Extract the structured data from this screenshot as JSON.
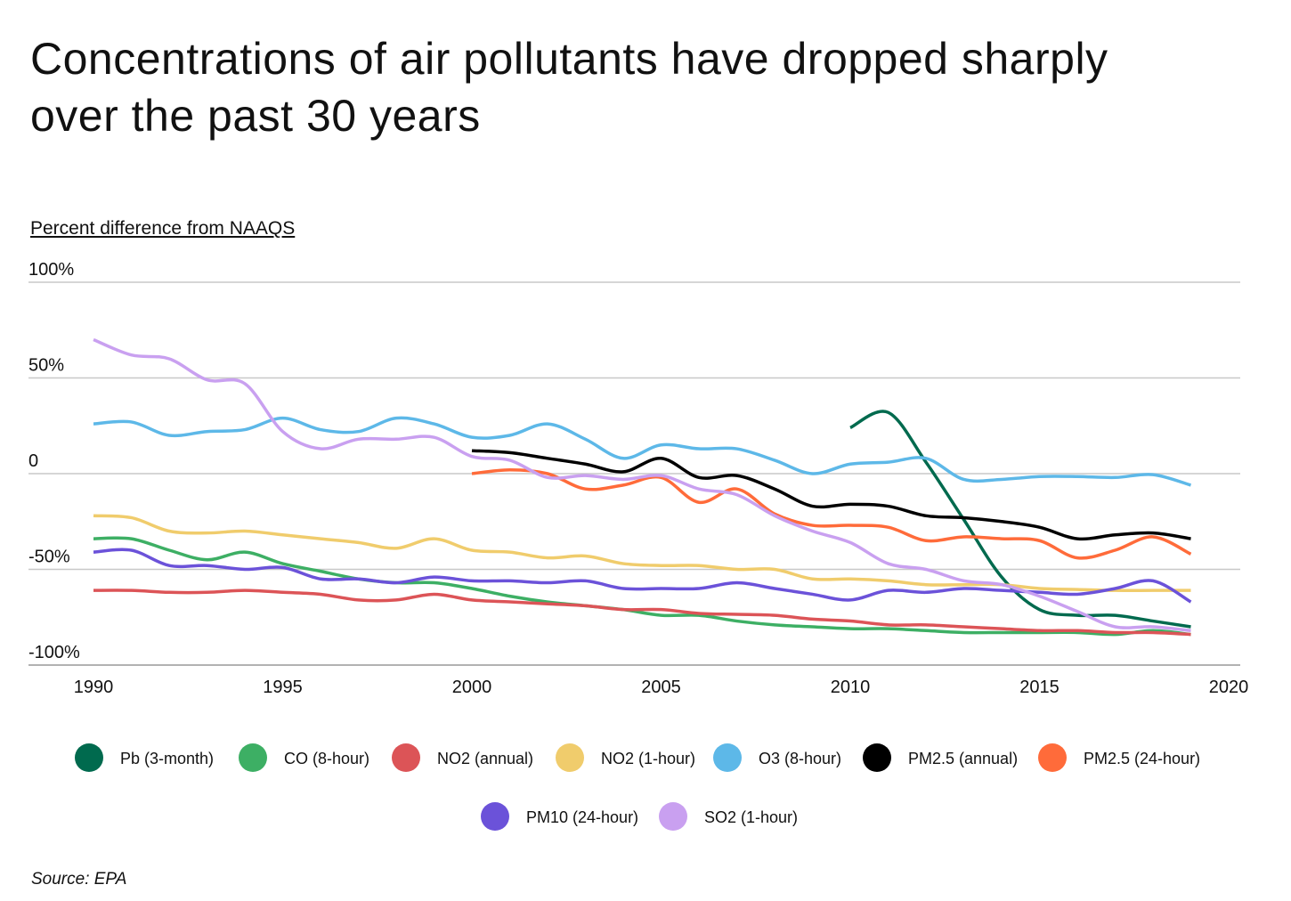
{
  "title": "Concentrations of air pollutants have dropped sharply over the past 30 years",
  "source": "Source:  EPA",
  "chart_data": {
    "type": "line",
    "title": "Concentrations of air pollutants have dropped sharply over the past 30 years",
    "ylabel": "Percent difference from NAAQS",
    "xlabel": "",
    "xlim": [
      1990,
      2020
    ],
    "ylim": [
      -100,
      100
    ],
    "x_ticks": [
      1990,
      1995,
      2000,
      2005,
      2010,
      2015,
      2020
    ],
    "y_ticks": [
      {
        "v": 100,
        "label": "100%"
      },
      {
        "v": 50,
        "label": "50%"
      },
      {
        "v": 0,
        "label": "0"
      },
      {
        "v": -50,
        "label": "-50%"
      },
      {
        "v": -100,
        "label": "-100%"
      }
    ],
    "grid": "horizontal",
    "legend_placement": "bottom",
    "series": [
      {
        "name": "Pb (3-month)",
        "color": "#006a4e",
        "start": 2010,
        "values": [
          24,
          32,
          6,
          -24,
          -54,
          -71,
          -74,
          -74,
          -77,
          -80
        ]
      },
      {
        "name": "CO (8-hour)",
        "color": "#3daf64",
        "start": 1990,
        "values": [
          -34,
          -34,
          -40,
          -45,
          -41,
          -47,
          -51,
          -55,
          -57,
          -57,
          -60,
          -64,
          -67,
          -69,
          -71,
          -74,
          -74,
          -77,
          -79,
          -80,
          -81,
          -81,
          -82,
          -83,
          -83,
          -83,
          -83,
          -84,
          -82,
          -84
        ]
      },
      {
        "name": "NO2 (annual)",
        "color": "#dc5457",
        "start": 1990,
        "values": [
          -61,
          -61,
          -62,
          -62,
          -61,
          -62,
          -63,
          -66,
          -66,
          -63,
          -66,
          -67,
          -68,
          -69,
          -71,
          -71,
          -73,
          -73.5,
          -74,
          -76,
          -77,
          -79,
          -79,
          -80,
          -81,
          -82,
          -82,
          -83,
          -83,
          -84
        ]
      },
      {
        "name": "NO2 (1-hour)",
        "color": "#f0cc6c",
        "start": 1990,
        "values": [
          -22,
          -23,
          -30,
          -31,
          -30,
          -32,
          -34,
          -36,
          -39,
          -34,
          -40,
          -41,
          -44,
          -43,
          -47,
          -48,
          -48,
          -50,
          -50,
          -55,
          -55,
          -56,
          -58,
          -58,
          -58,
          -60,
          -60.5,
          -61,
          -61,
          -61
        ]
      },
      {
        "name": "O3 (8-hour)",
        "color": "#5db8e8",
        "start": 1990,
        "values": [
          26,
          27,
          20,
          22,
          23,
          29,
          23,
          22,
          29,
          26,
          19,
          20,
          26,
          18,
          8,
          15,
          13,
          13,
          7,
          0,
          5,
          6,
          8,
          -3,
          -3,
          -1.5,
          -1.5,
          -2,
          -0.5,
          -6
        ]
      },
      {
        "name": "PM2.5 (annual)",
        "color": "#000000",
        "start": 2000,
        "values": [
          12,
          11,
          8,
          5,
          1,
          8,
          -2,
          -1,
          -8,
          -17,
          -16,
          -17,
          -22,
          -23,
          -25,
          -28,
          -34,
          -32,
          -31,
          -34
        ]
      },
      {
        "name": "PM2.5 (24-hour)",
        "color": "#ff6b3a",
        "start": 2000,
        "values": [
          0,
          2,
          0,
          -8,
          -6,
          -2,
          -15,
          -8,
          -21,
          -27,
          -27,
          -28,
          -35,
          -33,
          -34,
          -35,
          -44,
          -40,
          -33,
          -42
        ]
      },
      {
        "name": "PM10 (24-hour)",
        "color": "#6b52d9",
        "start": 1990,
        "values": [
          -41,
          -40,
          -48,
          -48,
          -50,
          -49,
          -55,
          -55,
          -57,
          -54,
          -56,
          -56,
          -57,
          -56,
          -60,
          -60,
          -60,
          -57,
          -60,
          -63,
          -66,
          -61,
          -62,
          -60,
          -61,
          -62,
          -63,
          -60,
          -56,
          -67
        ]
      },
      {
        "name": "SO2 (1-hour)",
        "color": "#c9a0f0",
        "start": 1990,
        "values": [
          70,
          62,
          60,
          49,
          47,
          22,
          13,
          18,
          18,
          19,
          9,
          7,
          -2,
          -1,
          -3,
          -1,
          -8,
          -11,
          -22,
          -30,
          -36,
          -47,
          -50,
          -56,
          -58,
          -64,
          -72,
          -80,
          -80,
          -82
        ]
      }
    ]
  }
}
